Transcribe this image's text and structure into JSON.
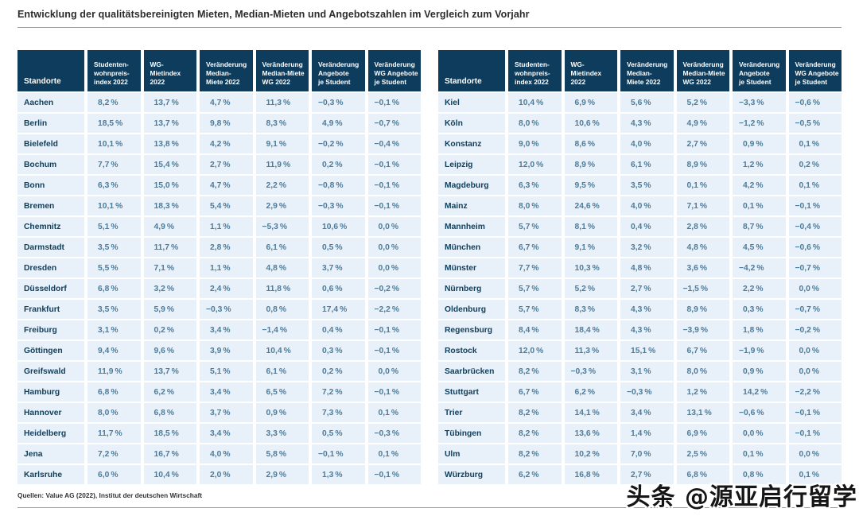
{
  "colors": {
    "header_bg": "#0e3c5d",
    "row_bg": "#e8f1f9",
    "city_text": "#0f405f",
    "value_text": "#4d7c9b",
    "header_text": "#ffffff",
    "rule": "#9b9b9b",
    "title_text": "#2b2b2b",
    "source_text": "#333333",
    "watermark_text": "#161616"
  },
  "footer": {
    "source": "Quellen: Value AG (2022), Institut der deutschen Wirtschaft"
  },
  "watermark": "头条 @源亚启行留学",
  "chart_data": {
    "type": "table",
    "title": "Entwicklung der qualitätsbereinigten Mieten, Median-Mieten und Angebotszahlen im Vergleich zum Vorjahr",
    "columns": [
      "Standorte",
      "Studenten-\nwohnpreis-\nindex 2022",
      "WG-\nMietindex\n2022",
      "Veränderung\nMedian-\nMiete 2022",
      "Veränderung\nMedian-Miete\nWG 2022",
      "Veränderung\nAngebote\nje Student",
      "Veränderung\nWG Angebote\nje Student"
    ],
    "left_rows": [
      [
        "Aachen",
        "8,2 %",
        "13,7 %",
        "4,7 %",
        "11,3 %",
        "−0,3 %",
        "−0,1 %"
      ],
      [
        "Berlin",
        "18,5 %",
        "13,7 %",
        "9,8 %",
        "8,3 %",
        "4,9 %",
        "−0,7 %"
      ],
      [
        "Bielefeld",
        "10,1 %",
        "13,8 %",
        "4,2 %",
        "9,1 %",
        "−0,2 %",
        "−0,4 %"
      ],
      [
        "Bochum",
        "7,7 %",
        "15,4 %",
        "2,7 %",
        "11,9 %",
        "0,2 %",
        "−0,1 %"
      ],
      [
        "Bonn",
        "6,3 %",
        "15,0 %",
        "4,7 %",
        "2,2 %",
        "−0,8 %",
        "−0,1 %"
      ],
      [
        "Bremen",
        "10,1 %",
        "18,3 %",
        "5,4 %",
        "2,9 %",
        "−0,3 %",
        "−0,1 %"
      ],
      [
        "Chemnitz",
        "5,1 %",
        "4,9 %",
        "1,1 %",
        "−5,3 %",
        "10,6 %",
        "0,0 %"
      ],
      [
        "Darmstadt",
        "3,5 %",
        "11,7 %",
        "2,8 %",
        "6,1 %",
        "0,5 %",
        "0,0 %"
      ],
      [
        "Dresden",
        "5,5 %",
        "7,1 %",
        "1,1 %",
        "4,8 %",
        "3,7 %",
        "0,0 %"
      ],
      [
        "Düsseldorf",
        "6,8 %",
        "3,2 %",
        "2,4 %",
        "11,8 %",
        "0,6 %",
        "−0,2 %"
      ],
      [
        "Frankfurt",
        "3,5 %",
        "5,9 %",
        "−0,3 %",
        "0,8 %",
        "17,4 %",
        "−2,2 %"
      ],
      [
        "Freiburg",
        "3,1 %",
        "0,2 %",
        "3,4 %",
        "−1,4 %",
        "0,4 %",
        "−0,1 %"
      ],
      [
        "Göttingen",
        "9,4 %",
        "9,6 %",
        "3,9 %",
        "10,4 %",
        "0,3 %",
        "−0,1 %"
      ],
      [
        "Greifswald",
        "11,9 %",
        "13,7 %",
        "5,1 %",
        "6,1 %",
        "0,2 %",
        "0,0 %"
      ],
      [
        "Hamburg",
        "6,8 %",
        "6,2 %",
        "3,4 %",
        "6,5 %",
        "7,2 %",
        "−0,1 %"
      ],
      [
        "Hannover",
        "8,0 %",
        "6,8 %",
        "3,7 %",
        "0,9 %",
        "7,3 %",
        "0,1 %"
      ],
      [
        "Heidelberg",
        "11,7 %",
        "18,5 %",
        "3,4 %",
        "3,3 %",
        "0,5 %",
        "−0,3 %"
      ],
      [
        "Jena",
        "7,2 %",
        "16,7 %",
        "4,0 %",
        "5,8 %",
        "−0,1 %",
        "0,1 %"
      ],
      [
        "Karlsruhe",
        "6,0 %",
        "10,4 %",
        "2,0 %",
        "2,9 %",
        "1,3 %",
        "−0,1 %"
      ]
    ],
    "right_rows": [
      [
        "Kiel",
        "10,4 %",
        "6,9 %",
        "5,6 %",
        "5,2 %",
        "−3,3 %",
        "−0,6 %"
      ],
      [
        "Köln",
        "8,0 %",
        "10,6 %",
        "4,3 %",
        "4,9 %",
        "−1,2 %",
        "−0,5 %"
      ],
      [
        "Konstanz",
        "9,0 %",
        "8,6 %",
        "4,0 %",
        "2,7 %",
        "0,9 %",
        "0,1 %"
      ],
      [
        "Leipzig",
        "12,0 %",
        "8,9 %",
        "6,1 %",
        "8,9 %",
        "1,2 %",
        "0,2 %"
      ],
      [
        "Magdeburg",
        "6,3 %",
        "9,5 %",
        "3,5 %",
        "0,1 %",
        "4,2 %",
        "0,1 %"
      ],
      [
        "Mainz",
        "8,0 %",
        "24,6 %",
        "4,0 %",
        "7,1 %",
        "0,1 %",
        "−0,1 %"
      ],
      [
        "Mannheim",
        "5,7 %",
        "8,1 %",
        "0,4 %",
        "2,8 %",
        "8,7 %",
        "−0,4 %"
      ],
      [
        "München",
        "6,7 %",
        "9,1 %",
        "3,2 %",
        "4,8 %",
        "4,5 %",
        "−0,6 %"
      ],
      [
        "Münster",
        "7,7 %",
        "10,3 %",
        "4,8 %",
        "3,6 %",
        "−4,2 %",
        "−0,7 %"
      ],
      [
        "Nürnberg",
        "5,7 %",
        "5,2 %",
        "2,7 %",
        "−1,5 %",
        "2,2 %",
        "0,0 %"
      ],
      [
        "Oldenburg",
        "5,7 %",
        "8,3 %",
        "4,3 %",
        "8,9 %",
        "0,3 %",
        "−0,7 %"
      ],
      [
        "Regensburg",
        "8,4 %",
        "18,4 %",
        "4,3 %",
        "−3,9 %",
        "1,8 %",
        "−0,2 %"
      ],
      [
        "Rostock",
        "12,0 %",
        "11,3 %",
        "15,1 %",
        "6,7 %",
        "−1,9 %",
        "0,0 %"
      ],
      [
        "Saarbrücken",
        "8,2 %",
        "−0,3 %",
        "3,1 %",
        "8,0 %",
        "0,9 %",
        "0,0 %"
      ],
      [
        "Stuttgart",
        "6,7 %",
        "6,2 %",
        "−0,3 %",
        "1,2 %",
        "14,2 %",
        "−2,2 %"
      ],
      [
        "Trier",
        "8,2 %",
        "14,1 %",
        "3,4 %",
        "13,1 %",
        "−0,6 %",
        "−0,1 %"
      ],
      [
        "Tübingen",
        "8,2 %",
        "13,6 %",
        "1,4 %",
        "6,9 %",
        "0,0 %",
        "−0,1 %"
      ],
      [
        "Ulm",
        "8,2 %",
        "10,2 %",
        "7,0 %",
        "2,5 %",
        "0,1 %",
        "0,0 %"
      ],
      [
        "Würzburg",
        "6,2 %",
        "16,8 %",
        "2,7 %",
        "6,8 %",
        "0,8 %",
        "0,1 %"
      ]
    ]
  }
}
